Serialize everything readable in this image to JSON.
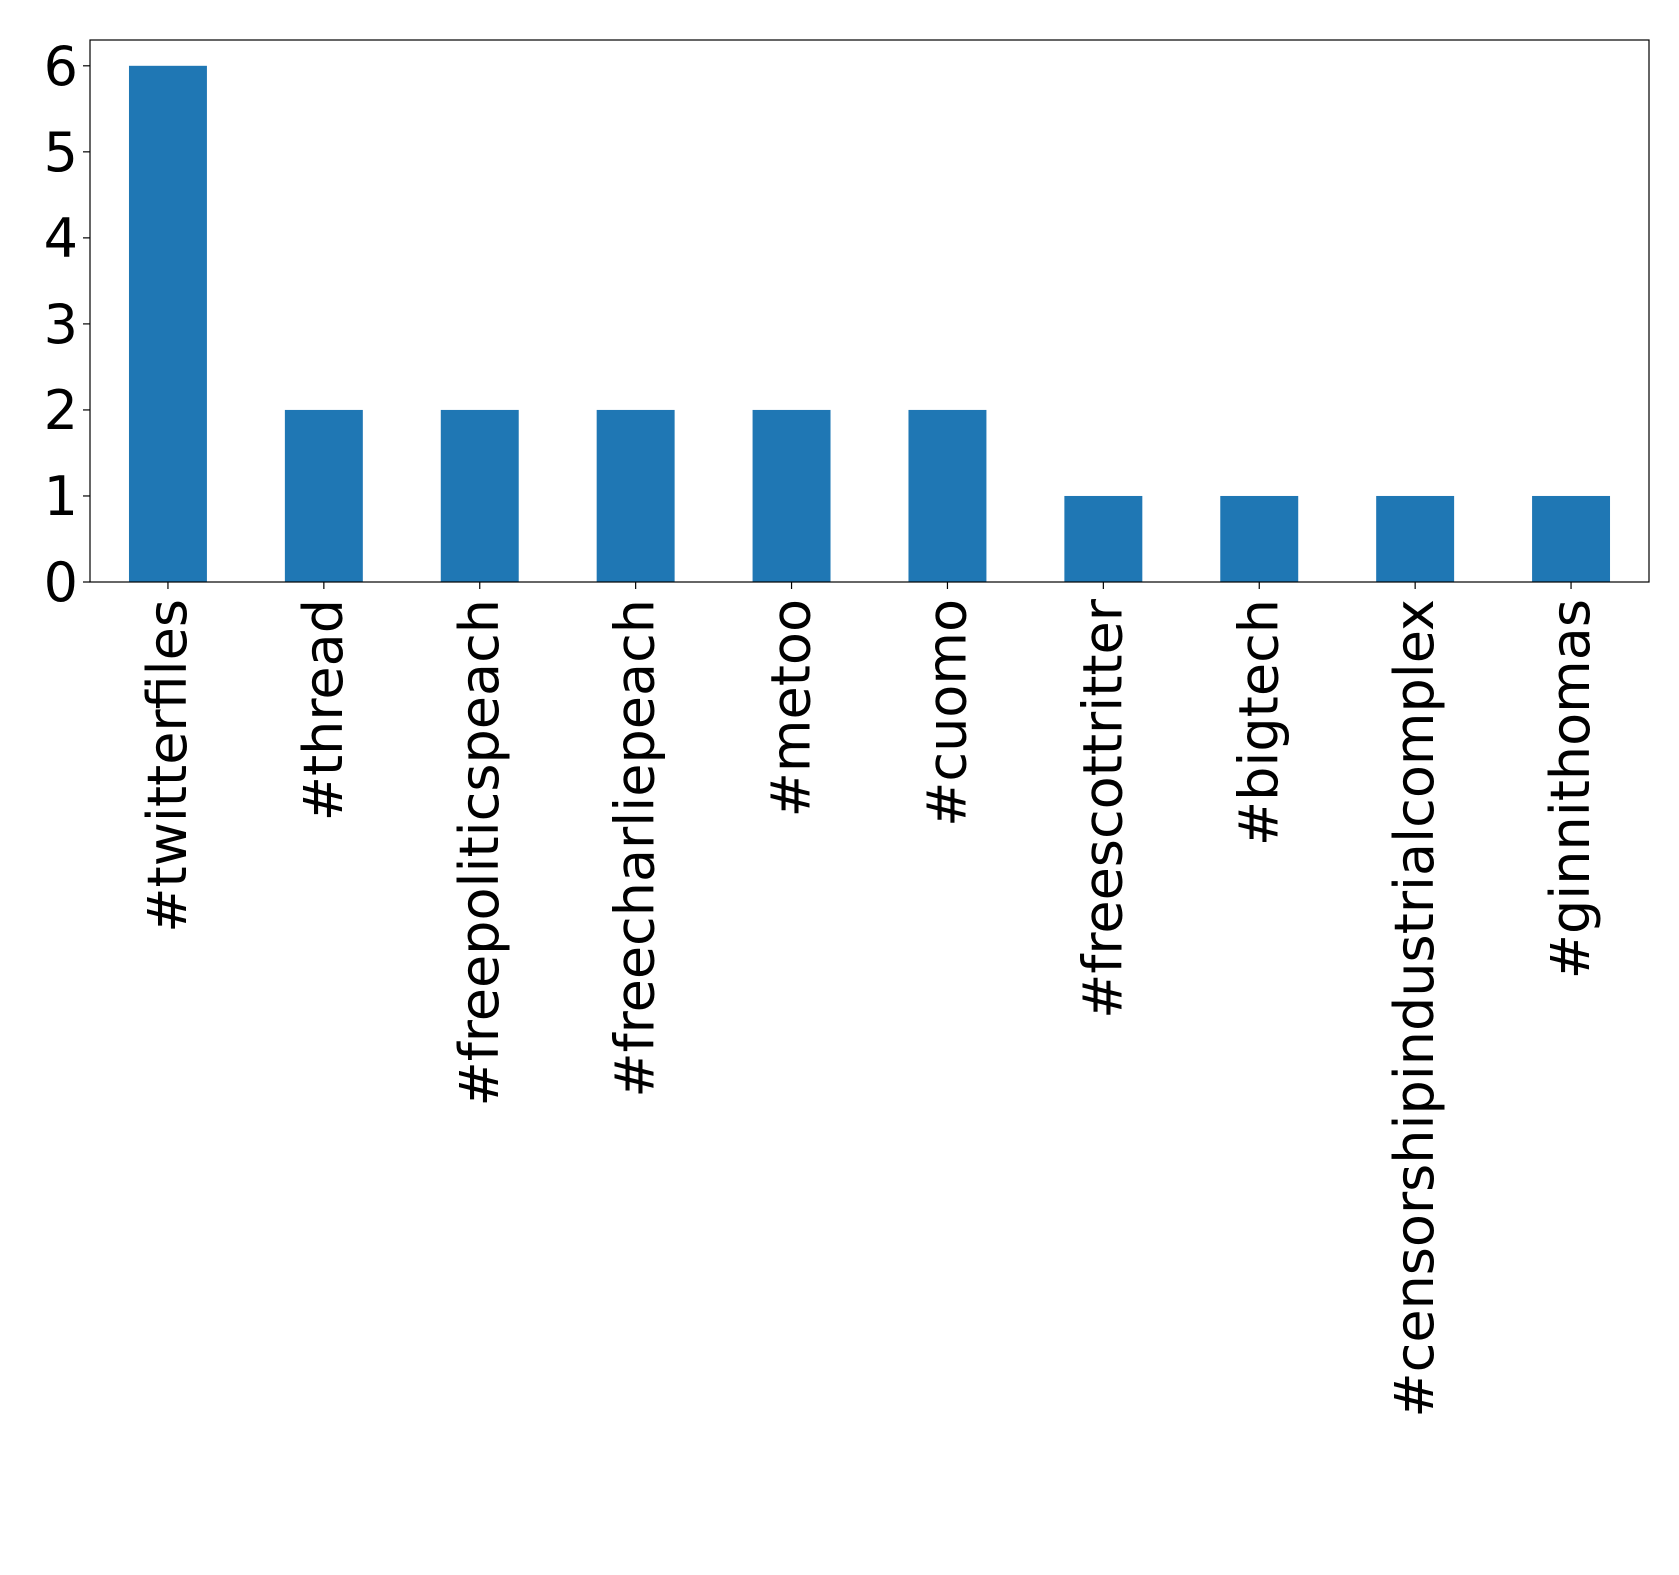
{
  "chart_data": {
    "type": "bar",
    "categories": [
      "#twitterfiles",
      "#thread",
      "#freepoliticspeach",
      "#freecharliepeach",
      "#metoo",
      "#cuomo",
      "#freescottritter",
      "#bigtech",
      "#censorshipindustrialcomplex",
      "#ginnithomas"
    ],
    "values": [
      6,
      2,
      2,
      2,
      2,
      2,
      1,
      1,
      1,
      1
    ],
    "yticks": [
      "0",
      "1",
      "2",
      "3",
      "4",
      "5",
      "6"
    ],
    "ylim": [
      0,
      6.3
    ],
    "title": "",
    "xlabel": "",
    "ylabel": "",
    "grid": false,
    "legend": false,
    "bar_color": "#1f77b4"
  }
}
